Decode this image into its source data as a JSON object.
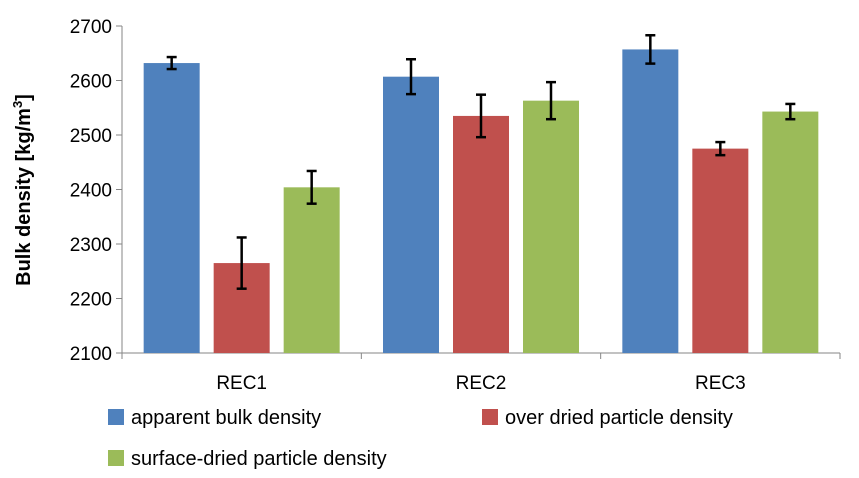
{
  "chart_data": {
    "type": "bar",
    "title": "",
    "xlabel": "",
    "ylabel": "Bulk density [kg/m",
    "ylabel_sup": "3",
    "ylabel_close": "]",
    "ylim": [
      2100,
      2700
    ],
    "yticks": [
      2100,
      2200,
      2300,
      2400,
      2500,
      2600,
      2700
    ],
    "grid": false,
    "legend_position": "bottom",
    "categories": [
      "REC1",
      "REC2",
      "REC3"
    ],
    "series": [
      {
        "name": "apparent bulk density",
        "color": "#4F81BD",
        "values": [
          2632,
          2607,
          2657
        ],
        "errors": [
          11,
          32,
          26
        ]
      },
      {
        "name": "over dried particle density",
        "color": "#C0504D",
        "values": [
          2265,
          2535,
          2475
        ],
        "errors": [
          47,
          39,
          12
        ]
      },
      {
        "name": "surface-dried particle density",
        "color": "#9BBB59",
        "values": [
          2404,
          2563,
          2543
        ],
        "errors": [
          30,
          34,
          14
        ]
      }
    ]
  }
}
